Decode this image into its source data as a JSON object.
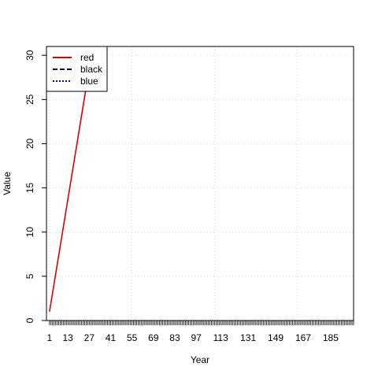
{
  "chart_data": {
    "type": "line",
    "title": "",
    "xlabel": "Year",
    "ylabel": "Value",
    "xlim": [
      -1,
      200
    ],
    "ylim": [
      0,
      31
    ],
    "x_tick_labels": [
      "1",
      "13",
      "27",
      "41",
      "55",
      "69",
      "83",
      "97",
      "113",
      "131",
      "149",
      "167",
      "185"
    ],
    "y_ticks": [
      0,
      5,
      10,
      15,
      20,
      25,
      30
    ],
    "x_minor_tick_range": [
      1,
      200
    ],
    "grid": true,
    "legend": {
      "position": "top-left",
      "entries": [
        "red",
        "black",
        "blue"
      ]
    },
    "series": [
      {
        "name": "red",
        "color": "#dd0000",
        "line_style": "solid",
        "x": [
          1,
          27
        ],
        "y": [
          1,
          28.5
        ]
      },
      {
        "name": "black",
        "color": "#000000",
        "line_style": "dashed",
        "x": [],
        "y": []
      },
      {
        "name": "blue",
        "color": "#0000cc",
        "line_style": "dotted",
        "x": [],
        "y": []
      }
    ]
  }
}
